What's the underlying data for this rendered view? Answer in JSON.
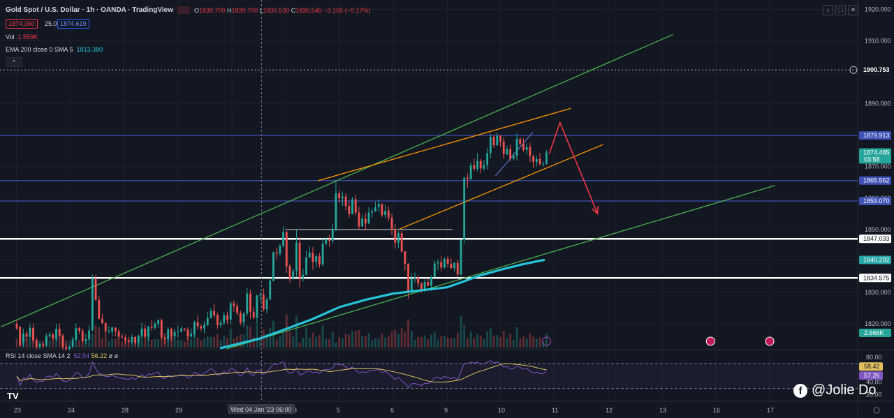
{
  "header": {
    "title": "Gold Spot / U.S. Dollar · 1h · OANDA · TradingView",
    "ohlc": [
      {
        "label": "O",
        "value": "1839.700"
      },
      {
        "label": "H",
        "value": "1839.700"
      },
      {
        "label": "L",
        "value": "1836.530"
      },
      {
        "label": "C",
        "value": "1836.545"
      }
    ],
    "change": "−3.155 (−0.17%)",
    "bid": "1874.360",
    "spread": "25.0",
    "ask": "1874.619",
    "volume_label": "Vol",
    "volume_value": "1.559K",
    "ema_label": "EMA 200 close 0 SMA 5",
    "ema_value": "1813.380",
    "collapse_glyph": "^",
    "rsi_label": "RSI 14 close SMA 14 2",
    "rsi_value": "52.54",
    "rsi_sma_value": "56.22",
    "rsi_extra": "ø ø"
  },
  "toolbar": {
    "download_glyph": "↓",
    "fullscreen_glyph": "⛶",
    "close_glyph": "✕"
  },
  "watermark": {
    "icon": "f",
    "text": "@Jolie Do"
  },
  "brand": {
    "logo": "TV"
  },
  "colors": {
    "background": "#131722",
    "bull": "#26a69a",
    "bear": "#ef5350",
    "green_channel": "#4caf50",
    "orange_channel": "#ff9800",
    "ema": "#26c6da",
    "blue_level": "#3f51b5",
    "white_level": "#ffffff",
    "arrow": "#f23645",
    "rsi": "#7e57c2",
    "rsi_sma": "#e0c060"
  },
  "chart_data": {
    "type": "candlestick",
    "y_axis": {
      "range": [
        1812,
        1923
      ],
      "ticks": [
        "1920.000",
        "1910.000",
        "1900.000",
        "1890.000",
        "1880.000",
        "1870.000",
        "1860.000",
        "1850.000",
        "1840.000",
        "1830.000",
        "1820.000"
      ],
      "tick_values": [
        1920,
        1910,
        1900,
        1890,
        1880,
        1870,
        1860,
        1850,
        1840,
        1830,
        1820
      ]
    },
    "x_axis": {
      "ticks": [
        "23",
        "24",
        "28",
        "29",
        "30",
        "2023",
        "5",
        "6",
        "9",
        "10",
        "11",
        "12",
        "13",
        "16",
        "17"
      ],
      "tick_positions_days": [
        0,
        1,
        2,
        3,
        4,
        5,
        6,
        7,
        8,
        9,
        10,
        11,
        12,
        13,
        14
      ],
      "crosshair_label": "Wed 04 Jan '23   06:00"
    },
    "price_labels": [
      {
        "value": 1900.753,
        "text": "1900.753",
        "kind": "alert"
      },
      {
        "value": 1879.913,
        "text": "1879.913",
        "kind": "blue"
      },
      {
        "value": 1874.485,
        "text": "1874.485",
        "countdown": "03:58",
        "kind": "current"
      },
      {
        "value": 1865.562,
        "text": "1865.562",
        "kind": "blue"
      },
      {
        "value": 1859.07,
        "text": "1859.070",
        "kind": "blue"
      },
      {
        "value": 1847.033,
        "text": "1847.033",
        "kind": "white"
      },
      {
        "value": 1840.292,
        "text": "1840.292",
        "kind": "ema"
      },
      {
        "value": 1834.575,
        "text": "1834.575",
        "kind": "white"
      }
    ],
    "horizontal_levels": [
      {
        "value": 1900.753,
        "style": "dotted",
        "color": "#b2b5be"
      },
      {
        "value": 1879.913,
        "style": "solid",
        "color": "#3f51b5"
      },
      {
        "value": 1865.562,
        "style": "solid",
        "color": "#3f51b5"
      },
      {
        "value": 1859.07,
        "style": "solid",
        "color": "#3f51b5"
      },
      {
        "value": 1847.033,
        "style": "thick",
        "color": "#ffffff"
      },
      {
        "value": 1834.575,
        "style": "thick",
        "color": "#ffffff"
      }
    ],
    "trend_lines": [
      {
        "name": "green-upper",
        "color": "#4caf50",
        "from": [
          -0.3,
          1819.0
        ],
        "to": [
          12.2,
          1912.0
        ]
      },
      {
        "name": "green-lower",
        "color": "#4caf50",
        "from": [
          3.9,
          1812.0
        ],
        "to": [
          14.1,
          1864.0
        ]
      },
      {
        "name": "orange-upper",
        "color": "#ff9800",
        "from": [
          5.6,
          1865.5
        ],
        "to": [
          10.3,
          1888.5
        ]
      },
      {
        "name": "orange-lower",
        "color": "#ff9800",
        "from": [
          7.1,
          1850.0
        ],
        "to": [
          10.9,
          1877.0
        ]
      },
      {
        "name": "grey-box-top",
        "color": "#9e9e9e",
        "from": [
          5.0,
          1850.0
        ],
        "to": [
          8.1,
          1850.0
        ]
      },
      {
        "name": "blue-rally",
        "color": "#5c6bc0",
        "from": [
          8.9,
          1867.0
        ],
        "to": [
          9.6,
          1881.0
        ]
      }
    ],
    "arrow": {
      "color": "#f23645",
      "points": [
        [
          9.9,
          1874.0
        ],
        [
          10.1,
          1884.0
        ],
        [
          10.8,
          1855.0
        ]
      ]
    },
    "candles": [
      [
        1820.0,
        1818.3,
        1821.3,
        1819.1
      ],
      [
        1819.1,
        1813.0,
        1818.6,
        1813.9
      ],
      [
        1813.9,
        1816.8,
        1818.5,
        1812.7
      ],
      [
        1816.8,
        1815.9,
        1817.6,
        1814.5
      ],
      [
        1815.9,
        1818.7,
        1820.0,
        1815.7
      ],
      [
        1818.7,
        1814.7,
        1820.1,
        1813.9
      ],
      [
        1814.7,
        1812.7,
        1815.0,
        1811.9
      ],
      [
        1812.7,
        1813.5,
        1813.8,
        1812.0
      ],
      [
        1813.5,
        1813.1,
        1814.1,
        1812.4
      ],
      [
        1813.1,
        1816.0,
        1816.9,
        1812.7
      ],
      [
        1816.0,
        1816.6,
        1817.4,
        1815.3
      ],
      [
        1816.6,
        1815.3,
        1817.2,
        1814.9
      ],
      [
        1815.3,
        1818.4,
        1820.0,
        1814.4
      ],
      [
        1818.4,
        1816.1,
        1820.1,
        1815.8
      ],
      [
        1816.1,
        1812.5,
        1816.5,
        1811.8
      ],
      [
        1812.5,
        1812.0,
        1813.7,
        1811.4
      ],
      [
        1812.0,
        1812.7,
        1813.0,
        1811.5
      ],
      [
        1812.7,
        1814.9,
        1815.6,
        1812.3
      ],
      [
        1814.9,
        1818.6,
        1820.2,
        1814.6
      ],
      [
        1818.6,
        1817.8,
        1819.0,
        1816.7
      ],
      [
        1817.8,
        1814.5,
        1818.5,
        1814.0
      ],
      [
        1814.5,
        1815.1,
        1816.8,
        1813.6
      ],
      [
        1815.1,
        1817.9,
        1819.5,
        1814.8
      ],
      [
        1817.9,
        1834.2,
        1835.7,
        1817.6
      ],
      [
        1834.2,
        1827.6,
        1835.6,
        1827.2
      ],
      [
        1827.6,
        1821.6,
        1829.0,
        1821.4
      ],
      [
        1821.6,
        1820.2,
        1823.2,
        1819.9
      ],
      [
        1820.2,
        1817.5,
        1820.5,
        1816.3
      ],
      [
        1817.5,
        1817.5,
        1819.3,
        1817.0
      ],
      [
        1817.5,
        1818.8,
        1819.2,
        1816.1
      ],
      [
        1818.8,
        1817.6,
        1818.9,
        1816.0
      ],
      [
        1817.6,
        1815.9,
        1818.4,
        1815.3
      ],
      [
        1815.9,
        1815.6,
        1817.0,
        1815.3
      ],
      [
        1815.6,
        1814.8,
        1816.5,
        1813.5
      ],
      [
        1814.8,
        1814.3,
        1815.8,
        1813.9
      ],
      [
        1814.3,
        1815.8,
        1816.6,
        1813.6
      ],
      [
        1815.8,
        1813.9,
        1816.2,
        1813.3
      ],
      [
        1813.9,
        1816.2,
        1816.6,
        1812.7
      ],
      [
        1816.2,
        1818.5,
        1820.3,
        1815.7
      ],
      [
        1818.5,
        1815.9,
        1819.6,
        1815.5
      ],
      [
        1815.9,
        1819.0,
        1819.4,
        1814.5
      ],
      [
        1819.0,
        1818.7,
        1821.2,
        1817.8
      ],
      [
        1818.7,
        1820.0,
        1820.7,
        1818.1
      ],
      [
        1820.0,
        1821.1,
        1821.6,
        1818.7
      ],
      [
        1821.1,
        1815.7,
        1821.7,
        1815.0
      ],
      [
        1815.7,
        1815.1,
        1817.0,
        1813.5
      ],
      [
        1815.1,
        1818.3,
        1818.9,
        1814.2
      ],
      [
        1818.3,
        1816.0,
        1818.8,
        1814.5
      ],
      [
        1816.0,
        1817.4,
        1818.4,
        1815.1
      ],
      [
        1817.4,
        1817.5,
        1819.4,
        1815.6
      ],
      [
        1817.5,
        1818.5,
        1819.1,
        1817.2
      ],
      [
        1818.5,
        1818.1,
        1818.6,
        1817.6
      ],
      [
        1818.1,
        1816.0,
        1818.9,
        1814.9
      ],
      [
        1816.0,
        1816.9,
        1818.5,
        1815.5
      ],
      [
        1816.9,
        1820.5,
        1821.0,
        1815.8
      ],
      [
        1820.5,
        1819.2,
        1822.6,
        1818.3
      ],
      [
        1819.2,
        1818.5,
        1819.8,
        1817.6
      ],
      [
        1818.5,
        1819.6,
        1820.8,
        1817.0
      ],
      [
        1819.6,
        1821.9,
        1823.7,
        1819.2
      ],
      [
        1821.9,
        1824.1,
        1824.9,
        1821.6
      ],
      [
        1824.1,
        1822.7,
        1826.5,
        1821.9
      ],
      [
        1822.7,
        1819.6,
        1823.6,
        1818.4
      ],
      [
        1819.6,
        1820.3,
        1821.4,
        1818.7
      ],
      [
        1820.3,
        1822.7,
        1823.8,
        1819.5
      ],
      [
        1822.7,
        1821.3,
        1823.9,
        1820.0
      ],
      [
        1821.3,
        1826.5,
        1827.1,
        1819.8
      ],
      [
        1826.5,
        1825.6,
        1827.4,
        1823.8
      ],
      [
        1825.6,
        1823.4,
        1826.5,
        1822.6
      ],
      [
        1823.4,
        1820.4,
        1824.2,
        1819.5
      ],
      [
        1820.4,
        1823.2,
        1823.7,
        1818.9
      ],
      [
        1823.2,
        1829.6,
        1831.4,
        1822.5
      ],
      [
        1829.6,
        1823.8,
        1830.8,
        1821.6
      ],
      [
        1823.8,
        1822.0,
        1825.4,
        1821.5
      ],
      [
        1822.0,
        1829.0,
        1829.3,
        1820.1
      ],
      [
        1829.0,
        1829.2,
        1830.3,
        1827.1
      ],
      [
        1829.2,
        1824.6,
        1831.2,
        1823.9
      ],
      [
        1824.6,
        1827.7,
        1828.4,
        1823.3
      ],
      [
        1827.7,
        1833.7,
        1834.6,
        1827.6
      ],
      [
        1833.7,
        1842.7,
        1843.0,
        1833.4
      ],
      [
        1842.7,
        1842.3,
        1844.2,
        1840.5
      ],
      [
        1842.3,
        1844.8,
        1845.4,
        1841.4
      ],
      [
        1844.8,
        1849.2,
        1851.0,
        1844.3
      ],
      [
        1849.2,
        1838.3,
        1849.5,
        1836.2
      ],
      [
        1838.3,
        1834.5,
        1839.1,
        1833.1
      ],
      [
        1834.5,
        1836.7,
        1837.5,
        1833.9
      ],
      [
        1836.7,
        1845.8,
        1850.0,
        1835.0
      ],
      [
        1845.8,
        1834.5,
        1847.5,
        1831.6
      ],
      [
        1834.5,
        1835.6,
        1837.5,
        1833.4
      ],
      [
        1835.6,
        1841.1,
        1843.3,
        1835.4
      ],
      [
        1841.1,
        1842.6,
        1844.6,
        1840.9
      ],
      [
        1842.6,
        1839.7,
        1844.4,
        1837.2
      ],
      [
        1839.7,
        1841.5,
        1842.1,
        1838.0
      ],
      [
        1841.5,
        1838.9,
        1842.5,
        1837.8
      ],
      [
        1838.9,
        1845.5,
        1847.2,
        1838.3
      ],
      [
        1845.5,
        1846.9,
        1847.5,
        1844.9
      ],
      [
        1846.9,
        1846.4,
        1848.4,
        1844.5
      ],
      [
        1846.4,
        1850.2,
        1851.8,
        1845.6
      ],
      [
        1850.2,
        1861.5,
        1865.8,
        1849.4
      ],
      [
        1861.5,
        1859.9,
        1862.5,
        1858.4
      ],
      [
        1859.9,
        1860.5,
        1862.1,
        1857.5
      ],
      [
        1860.5,
        1857.5,
        1861.5,
        1856.1
      ],
      [
        1857.5,
        1854.9,
        1858.9,
        1853.8
      ],
      [
        1854.9,
        1859.6,
        1860.3,
        1854.8
      ],
      [
        1859.6,
        1855.4,
        1861.1,
        1854.5
      ],
      [
        1855.4,
        1851.0,
        1857.3,
        1850.1
      ],
      [
        1851.0,
        1853.4,
        1854.7,
        1850.8
      ],
      [
        1853.4,
        1851.9,
        1855.2,
        1849.7
      ],
      [
        1851.9,
        1855.4,
        1857.1,
        1851.7
      ],
      [
        1855.4,
        1855.8,
        1856.7,
        1853.7
      ],
      [
        1855.8,
        1857.1,
        1858.8,
        1855.6
      ],
      [
        1857.1,
        1858.1,
        1859.5,
        1855.7
      ],
      [
        1858.1,
        1854.6,
        1858.4,
        1853.9
      ],
      [
        1854.6,
        1855.9,
        1857.9,
        1853.5
      ],
      [
        1855.9,
        1853.8,
        1857.2,
        1852.7
      ],
      [
        1853.8,
        1850.0,
        1855.1,
        1848.2
      ],
      [
        1850.0,
        1845.8,
        1851.7,
        1843.8
      ],
      [
        1845.8,
        1848.8,
        1849.5,
        1844.2
      ],
      [
        1848.8,
        1843.0,
        1849.6,
        1842.6
      ],
      [
        1843.0,
        1839.1,
        1843.2,
        1836.9
      ],
      [
        1839.1,
        1830.0,
        1839.3,
        1828.0
      ],
      [
        1830.0,
        1834.4,
        1836.0,
        1829.8
      ],
      [
        1834.4,
        1834.8,
        1836.3,
        1833.0
      ],
      [
        1834.8,
        1832.8,
        1835.3,
        1831.6
      ],
      [
        1832.8,
        1830.6,
        1833.2,
        1830.0
      ],
      [
        1830.6,
        1833.3,
        1834.1,
        1830.1
      ],
      [
        1833.3,
        1832.1,
        1834.3,
        1831.9
      ],
      [
        1832.1,
        1834.9,
        1835.4,
        1830.4
      ],
      [
        1834.9,
        1839.2,
        1840.1,
        1834.8
      ],
      [
        1839.2,
        1839.6,
        1840.5,
        1837.0
      ],
      [
        1839.6,
        1837.9,
        1841.7,
        1836.6
      ],
      [
        1837.9,
        1840.7,
        1841.1,
        1837.5
      ],
      [
        1840.7,
        1839.1,
        1841.5,
        1838.0
      ],
      [
        1839.1,
        1837.7,
        1840.8,
        1837.4
      ],
      [
        1837.7,
        1839.4,
        1839.5,
        1836.6
      ],
      [
        1839.4,
        1835.7,
        1840.3,
        1834.8
      ],
      [
        1835.7,
        1846.7,
        1846.8,
        1835.3
      ],
      [
        1846.7,
        1866.5,
        1866.7,
        1845.6
      ],
      [
        1866.5,
        1866.0,
        1867.8,
        1863.3
      ],
      [
        1866.0,
        1870.4,
        1871.2,
        1865.8
      ],
      [
        1870.4,
        1869.3,
        1872.5,
        1868.6
      ],
      [
        1869.3,
        1871.8,
        1874.3,
        1868.5
      ],
      [
        1871.8,
        1869.4,
        1872.5,
        1867.9
      ],
      [
        1869.4,
        1870.5,
        1872.1,
        1868.7
      ],
      [
        1870.5,
        1874.3,
        1875.9,
        1869.1
      ],
      [
        1874.3,
        1879.4,
        1880.5,
        1872.7
      ],
      [
        1879.4,
        1876.8,
        1880.0,
        1875.9
      ],
      [
        1876.8,
        1879.8,
        1880.8,
        1876.5
      ],
      [
        1879.8,
        1878.0,
        1880.0,
        1876.3
      ],
      [
        1878.0,
        1873.9,
        1879.3,
        1872.4
      ],
      [
        1873.9,
        1875.6,
        1876.7,
        1873.6
      ],
      [
        1875.6,
        1872.5,
        1877.1,
        1871.7
      ],
      [
        1872.5,
        1873.4,
        1874.4,
        1871.9
      ],
      [
        1873.4,
        1878.8,
        1880.6,
        1871.9
      ],
      [
        1878.8,
        1877.2,
        1879.3,
        1876.7
      ],
      [
        1877.2,
        1875.3,
        1879.0,
        1874.7
      ],
      [
        1875.3,
        1876.2,
        1877.4,
        1873.9
      ],
      [
        1876.2,
        1873.3,
        1877.5,
        1871.4
      ],
      [
        1873.3,
        1871.5,
        1873.8,
        1869.6
      ],
      [
        1871.5,
        1872.4,
        1873.5,
        1870.0
      ],
      [
        1872.4,
        1870.8,
        1874.3,
        1870.3
      ],
      [
        1870.8,
        1870.9,
        1871.7,
        1870.0
      ],
      [
        1870.9,
        1874.5,
        1875.3,
        1870.6
      ]
    ],
    "candles_format": "[open, close, high, low]",
    "candles_x_range_days": [
      0,
      9.85
    ],
    "ema_200": [
      [
        3.8,
        1812.3
      ],
      [
        4.5,
        1815.2
      ],
      [
        5.0,
        1818.3
      ],
      [
        5.5,
        1821.5
      ],
      [
        6.0,
        1825.3
      ],
      [
        6.5,
        1827.7
      ],
      [
        7.0,
        1829.6
      ],
      [
        7.5,
        1830.6
      ],
      [
        8.0,
        1831.6
      ],
      [
        8.3,
        1833.4
      ],
      [
        8.6,
        1835.3
      ],
      [
        9.0,
        1837.2
      ],
      [
        9.4,
        1838.9
      ],
      [
        9.8,
        1840.3
      ]
    ],
    "rsi_panel": {
      "range": [
        15,
        90
      ],
      "ticks": [
        "80.00",
        "40.00",
        "20.00"
      ],
      "tick_values": [
        80,
        40,
        20
      ],
      "levels": [
        70,
        30
      ],
      "labels": [
        {
          "text": "58.42",
          "value": 58.42,
          "color": "#e0c060"
        },
        {
          "text": "57.26",
          "value": 57.26,
          "color": "#7e57c2"
        }
      ]
    },
    "volume_label": {
      "text": "2.666K"
    }
  }
}
